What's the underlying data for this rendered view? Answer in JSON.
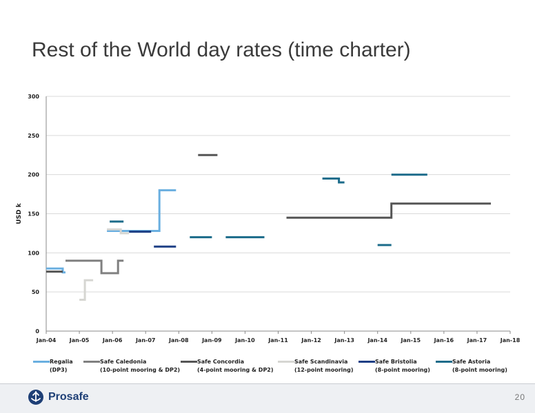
{
  "slide": {
    "title": "Rest of the World day rates (time charter)",
    "page_number": "20",
    "logo_text": "Prosafe"
  },
  "chart_data": {
    "type": "line",
    "step": true,
    "ylabel": "USD k",
    "xlabel": "",
    "ylim": [
      0,
      300
    ],
    "yticks": [
      0,
      50,
      100,
      150,
      200,
      250,
      300
    ],
    "xlim": [
      "2004-01",
      "2018-01"
    ],
    "xticks": [
      "Jan-04",
      "Jan-05",
      "Jan-06",
      "Jan-07",
      "Jan-08",
      "Jan-09",
      "Jan-10",
      "Jan-11",
      "Jan-12",
      "Jan-13",
      "Jan-14",
      "Jan-15",
      "Jan-16",
      "Jan-17",
      "Jan-18"
    ],
    "grid": "horizontal",
    "legend": "bottom",
    "series": [
      {
        "name": "Regalia",
        "name_line2": "(DP3)",
        "color": "#6aafe0",
        "segments": [
          [
            [
              "2004-01",
              80
            ],
            [
              "2004-07",
              80
            ],
            [
              "2004-07",
              75
            ],
            [
              "2004-08",
              75
            ]
          ],
          [
            [
              "2005-11",
              128
            ],
            [
              "2007-06",
              128
            ],
            [
              "2007-06",
              180
            ],
            [
              "2007-12",
              180
            ]
          ]
        ]
      },
      {
        "name": "Safe Caledonia",
        "name_line2": "(10-point mooring & DP2)",
        "color": "#808080",
        "segments": [
          [
            [
              "2004-08",
              90
            ],
            [
              "2005-09",
              90
            ],
            [
              "2005-09",
              74
            ],
            [
              "2006-03",
              74
            ],
            [
              "2006-03",
              90
            ],
            [
              "2006-05",
              90
            ]
          ]
        ]
      },
      {
        "name": "Safe Concordia",
        "name_line2": "(4-point mooring & DP2)",
        "color": "#555555",
        "segments": [
          [
            [
              "2004-01",
              76
            ],
            [
              "2004-07",
              76
            ]
          ],
          [
            [
              "2008-08",
              225
            ],
            [
              "2009-03",
              225
            ]
          ],
          [
            [
              "2011-04",
              145
            ],
            [
              "2014-06",
              145
            ],
            [
              "2014-06",
              163
            ],
            [
              "2017-06",
              163
            ]
          ]
        ]
      },
      {
        "name": "Safe Scandinavia",
        "name_line2": "(12-point mooring)",
        "color": "#d6d6d2",
        "segments": [
          [
            [
              "2005-01",
              40
            ],
            [
              "2005-03",
              40
            ],
            [
              "2005-03",
              65
            ],
            [
              "2005-06",
              65
            ]
          ],
          [
            [
              "2005-11",
              130
            ],
            [
              "2006-04",
              130
            ],
            [
              "2006-04",
              125
            ],
            [
              "2006-07",
              125
            ]
          ]
        ]
      },
      {
        "name": "Safe Bristolia",
        "name_line2": "(8-point mooring)",
        "color": "#1d3f85",
        "segments": [
          [
            [
              "2006-07",
              127
            ],
            [
              "2007-03",
              127
            ]
          ],
          [
            [
              "2007-04",
              108
            ],
            [
              "2007-12",
              108
            ]
          ]
        ]
      },
      {
        "name": "Safe Astoria",
        "name_line2": "(8-point mooring)",
        "color": "#1b6b8a",
        "segments": [
          [
            [
              "2005-12",
              140
            ],
            [
              "2006-05",
              140
            ]
          ],
          [
            [
              "2008-05",
              120
            ],
            [
              "2009-01",
              120
            ]
          ],
          [
            [
              "2009-06",
              120
            ],
            [
              "2010-08",
              120
            ]
          ],
          [
            [
              "2012-05",
              195
            ],
            [
              "2012-11",
              195
            ],
            [
              "2012-11",
              190
            ],
            [
              "2013-01",
              190
            ]
          ],
          [
            [
              "2014-01",
              110
            ],
            [
              "2014-06",
              110
            ]
          ],
          [
            [
              "2014-06",
              200
            ],
            [
              "2015-07",
              200
            ]
          ]
        ]
      }
    ]
  }
}
